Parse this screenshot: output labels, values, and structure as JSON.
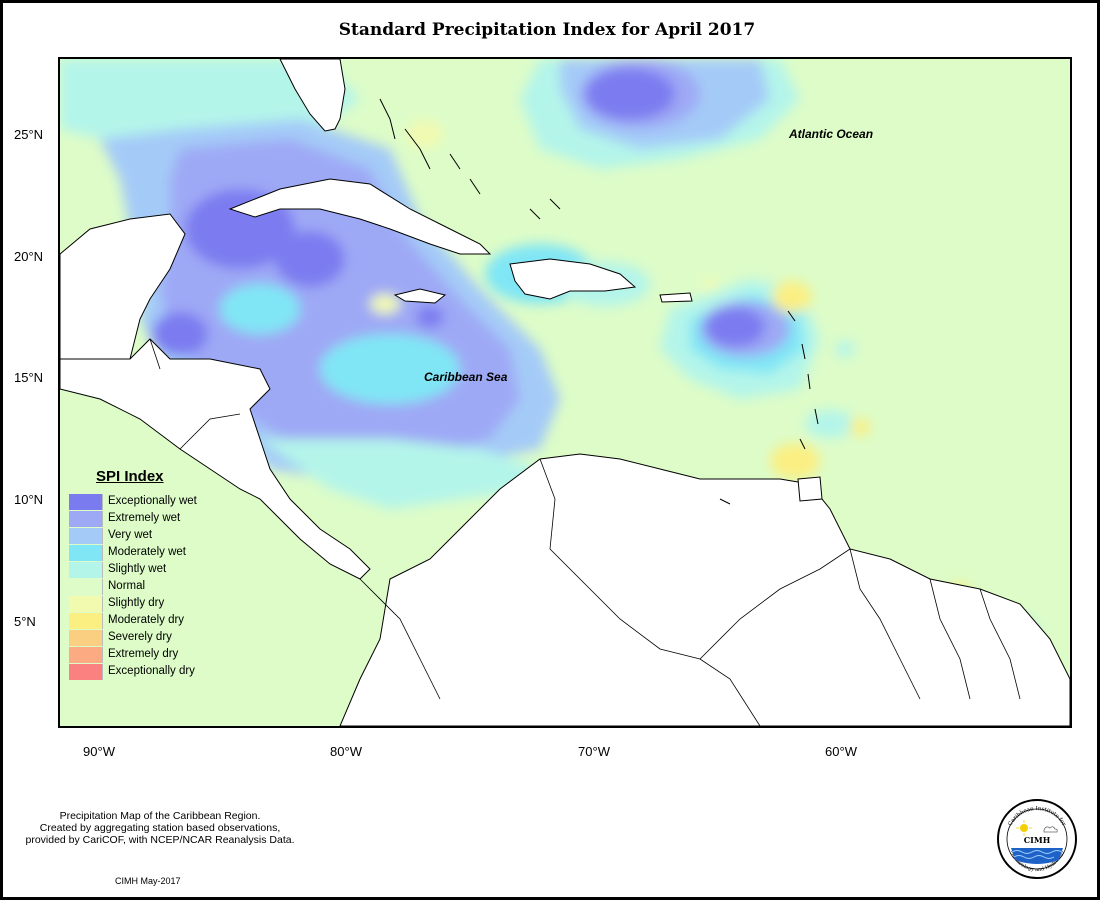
{
  "title": "Standard Precipitation Index for April 2017",
  "map": {
    "lat_ticks": [
      "25°N",
      "20°N",
      "15°N",
      "10°N",
      "5°N"
    ],
    "lon_ticks": [
      "90°W",
      "80°W",
      "70°W",
      "60°W"
    ],
    "labels": {
      "ocean": "Atlantic Ocean",
      "sea": "Caribbean Sea"
    }
  },
  "legend": {
    "title": "SPI Index",
    "items": [
      {
        "label": "Exceptionally wet",
        "color": "#7b7bf0"
      },
      {
        "label": "Extremely wet",
        "color": "#9ea9f5"
      },
      {
        "label": "Very wet",
        "color": "#a4cbf8"
      },
      {
        "label": "Moderately wet",
        "color": "#80e6f5"
      },
      {
        "label": "Slightly wet",
        "color": "#b4f5ea"
      },
      {
        "label": "Normal",
        "color": "#ddfcc8"
      },
      {
        "label": "Slightly dry",
        "color": "#f2fab0"
      },
      {
        "label": "Moderately dry",
        "color": "#fbef82"
      },
      {
        "label": "Severely dry",
        "color": "#fbcf82"
      },
      {
        "label": "Extremely dry",
        "color": "#fbaa82"
      },
      {
        "label": "Exceptionally dry",
        "color": "#fb8080"
      }
    ]
  },
  "note": {
    "line1": "Precipitation Map of the Caribbean Region.",
    "line2": "Created by aggregating station based observations,",
    "line3": "provided by CariCOF, with NCEP/NCAR Reanalysis Data."
  },
  "stamp": "CIMH May-2017",
  "logo": {
    "top_text": "Caribbean Institute for",
    "center": "CIMH",
    "bottom_text": "Meteorology and Hydrology"
  }
}
